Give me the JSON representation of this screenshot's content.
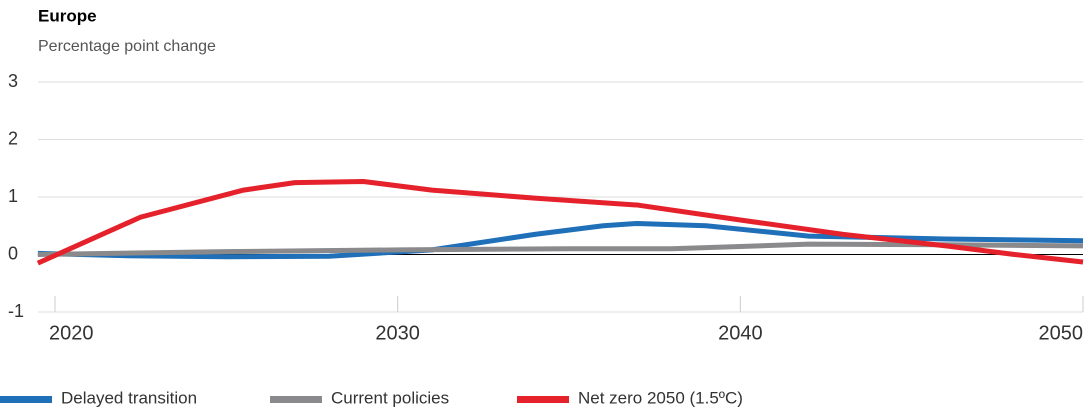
{
  "chart_data": {
    "type": "line",
    "title": "Europe",
    "subtitle": "Percentage point change",
    "xlim": [
      2020,
      2050
    ],
    "xticks": [
      2020,
      2030,
      2040,
      2050
    ],
    "ylim": [
      -1,
      3
    ],
    "yticks": [
      -1,
      0,
      1,
      2,
      3
    ],
    "grid": true,
    "series": [
      {
        "name": "Delayed transition",
        "color": "#1f6fb9",
        "x": [
          2019.5,
          2022,
          2025,
          2028,
          2031,
          2034,
          2036,
          2037,
          2039,
          2042,
          2046,
          2050
        ],
        "values": [
          0.02,
          -0.02,
          -0.04,
          -0.03,
          0.08,
          0.35,
          0.5,
          0.54,
          0.5,
          0.32,
          0.27,
          0.24
        ]
      },
      {
        "name": "Current policies",
        "color": "#8a8a8d",
        "x": [
          2019.5,
          2025,
          2030,
          2035,
          2038,
          2042,
          2046,
          2050
        ],
        "values": [
          0,
          0.05,
          0.08,
          0.1,
          0.1,
          0.18,
          0.17,
          0.15
        ]
      },
      {
        "name": "Net zero 2050 (1.5ºC)",
        "color": "#e5222c",
        "x": [
          2019.5,
          2022.5,
          2025.5,
          2027,
          2029,
          2031,
          2034,
          2037,
          2040,
          2043,
          2046,
          2048,
          2050
        ],
        "values": [
          -0.15,
          0.65,
          1.12,
          1.25,
          1.27,
          1.12,
          0.98,
          0.86,
          0.6,
          0.35,
          0.15,
          0,
          -0.13
        ]
      }
    ]
  }
}
